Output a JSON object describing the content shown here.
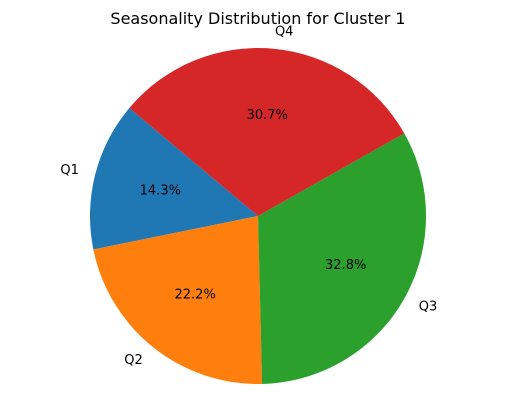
{
  "chart_data": {
    "type": "pie",
    "title": "Seasonality Distribution for Cluster 1",
    "slices": [
      {
        "label": "Q1",
        "value": 14.3,
        "pct_label": "14.3%",
        "color": "#1f77b4"
      },
      {
        "label": "Q2",
        "value": 22.2,
        "pct_label": "22.2%",
        "color": "#ff7f0e"
      },
      {
        "label": "Q3",
        "value": 32.8,
        "pct_label": "32.8%",
        "color": "#2ca02c"
      },
      {
        "label": "Q4",
        "value": 30.7,
        "pct_label": "30.7%",
        "color": "#d62728"
      }
    ],
    "start_angle_deg": 140,
    "direction": "counterclockwise",
    "legend": "none",
    "grid": false
  }
}
